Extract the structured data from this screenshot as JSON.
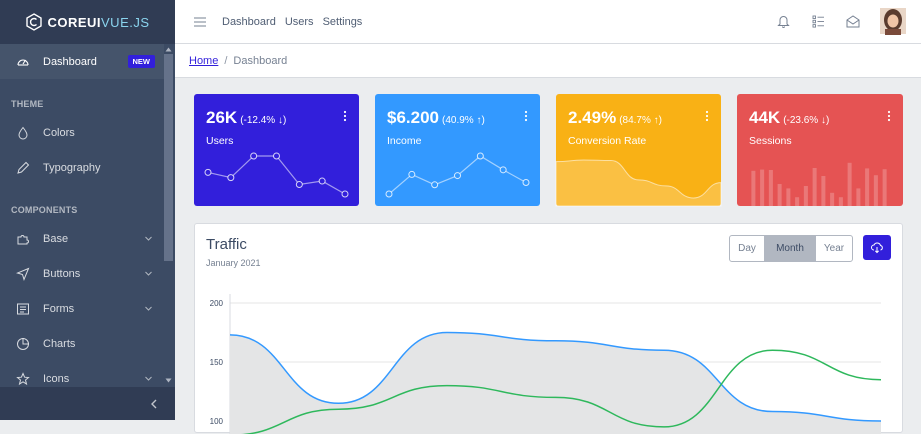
{
  "brand": {
    "bold": "COREUI",
    "thin": "VUE.JS"
  },
  "sidebar": {
    "dashboard": {
      "label": "Dashboard",
      "badge": "NEW",
      "icon": "speedometer-icon"
    },
    "section_theme": "THEME",
    "colors": {
      "label": "Colors",
      "icon": "drop-icon"
    },
    "typography": {
      "label": "Typography",
      "icon": "pencil-icon"
    },
    "section_components": "COMPONENTS",
    "base": {
      "label": "Base",
      "icon": "puzzle-icon"
    },
    "buttons": {
      "label": "Buttons",
      "icon": "cursor-icon"
    },
    "forms": {
      "label": "Forms",
      "icon": "notes-icon"
    },
    "charts": {
      "label": "Charts",
      "icon": "chart-pie-icon"
    },
    "icons": {
      "label": "Icons",
      "icon": "star-icon"
    }
  },
  "header": {
    "nav": [
      "Dashboard",
      "Users",
      "Settings"
    ]
  },
  "breadcrumb": {
    "home": "Home",
    "separator": "/",
    "current": "Dashboard"
  },
  "widgets": [
    {
      "value": "26K",
      "change": "(-12.4% ↓)",
      "label": "Users",
      "color": "#321fdb",
      "chart": "line",
      "points": [
        65,
        59,
        84,
        84,
        51,
        55,
        40
      ]
    },
    {
      "value": "$6.200",
      "change": "(40.9% ↑)",
      "label": "Income",
      "color": "#39f",
      "chart": "line",
      "points": [
        1,
        18,
        9,
        17,
        34,
        22,
        11
      ]
    },
    {
      "value": "2.49%",
      "change": "(84.7% ↑)",
      "label": "Conversion Rate",
      "color": "#f9b115",
      "chart": "area",
      "points": [
        78,
        81,
        80,
        45,
        34,
        12,
        40
      ]
    },
    {
      "value": "44K",
      "change": "(-23.6% ↓)",
      "label": "Sessions",
      "color": "#e55353",
      "chart": "bar",
      "points": [
        78,
        81,
        80,
        45,
        34,
        12,
        40,
        85,
        65,
        23,
        12,
        98,
        34,
        84,
        67,
        82
      ]
    }
  ],
  "traffic": {
    "title": "Traffic",
    "subtitle": "January 2021",
    "periods": [
      "Day",
      "Month",
      "Year"
    ],
    "active_period": "Month"
  },
  "chart_data": {
    "type": "line",
    "ylim": [
      100,
      200
    ],
    "yticks": [
      200,
      150,
      100
    ],
    "series": [
      {
        "color": "#39f",
        "fill": "#e4e5e6",
        "values": [
          173,
          115,
          175,
          168,
          160,
          108,
          100
        ]
      },
      {
        "color": "#2eb85c",
        "values": [
          88,
          110,
          130,
          120,
          95,
          160,
          135
        ]
      }
    ]
  },
  "colors": {
    "primary": "#321fdb",
    "sidebar": "#3c4b64",
    "sidebar_dark": "#303c54",
    "info": "#39f",
    "warning": "#f9b115",
    "danger": "#e55353",
    "success": "#2eb85c"
  }
}
